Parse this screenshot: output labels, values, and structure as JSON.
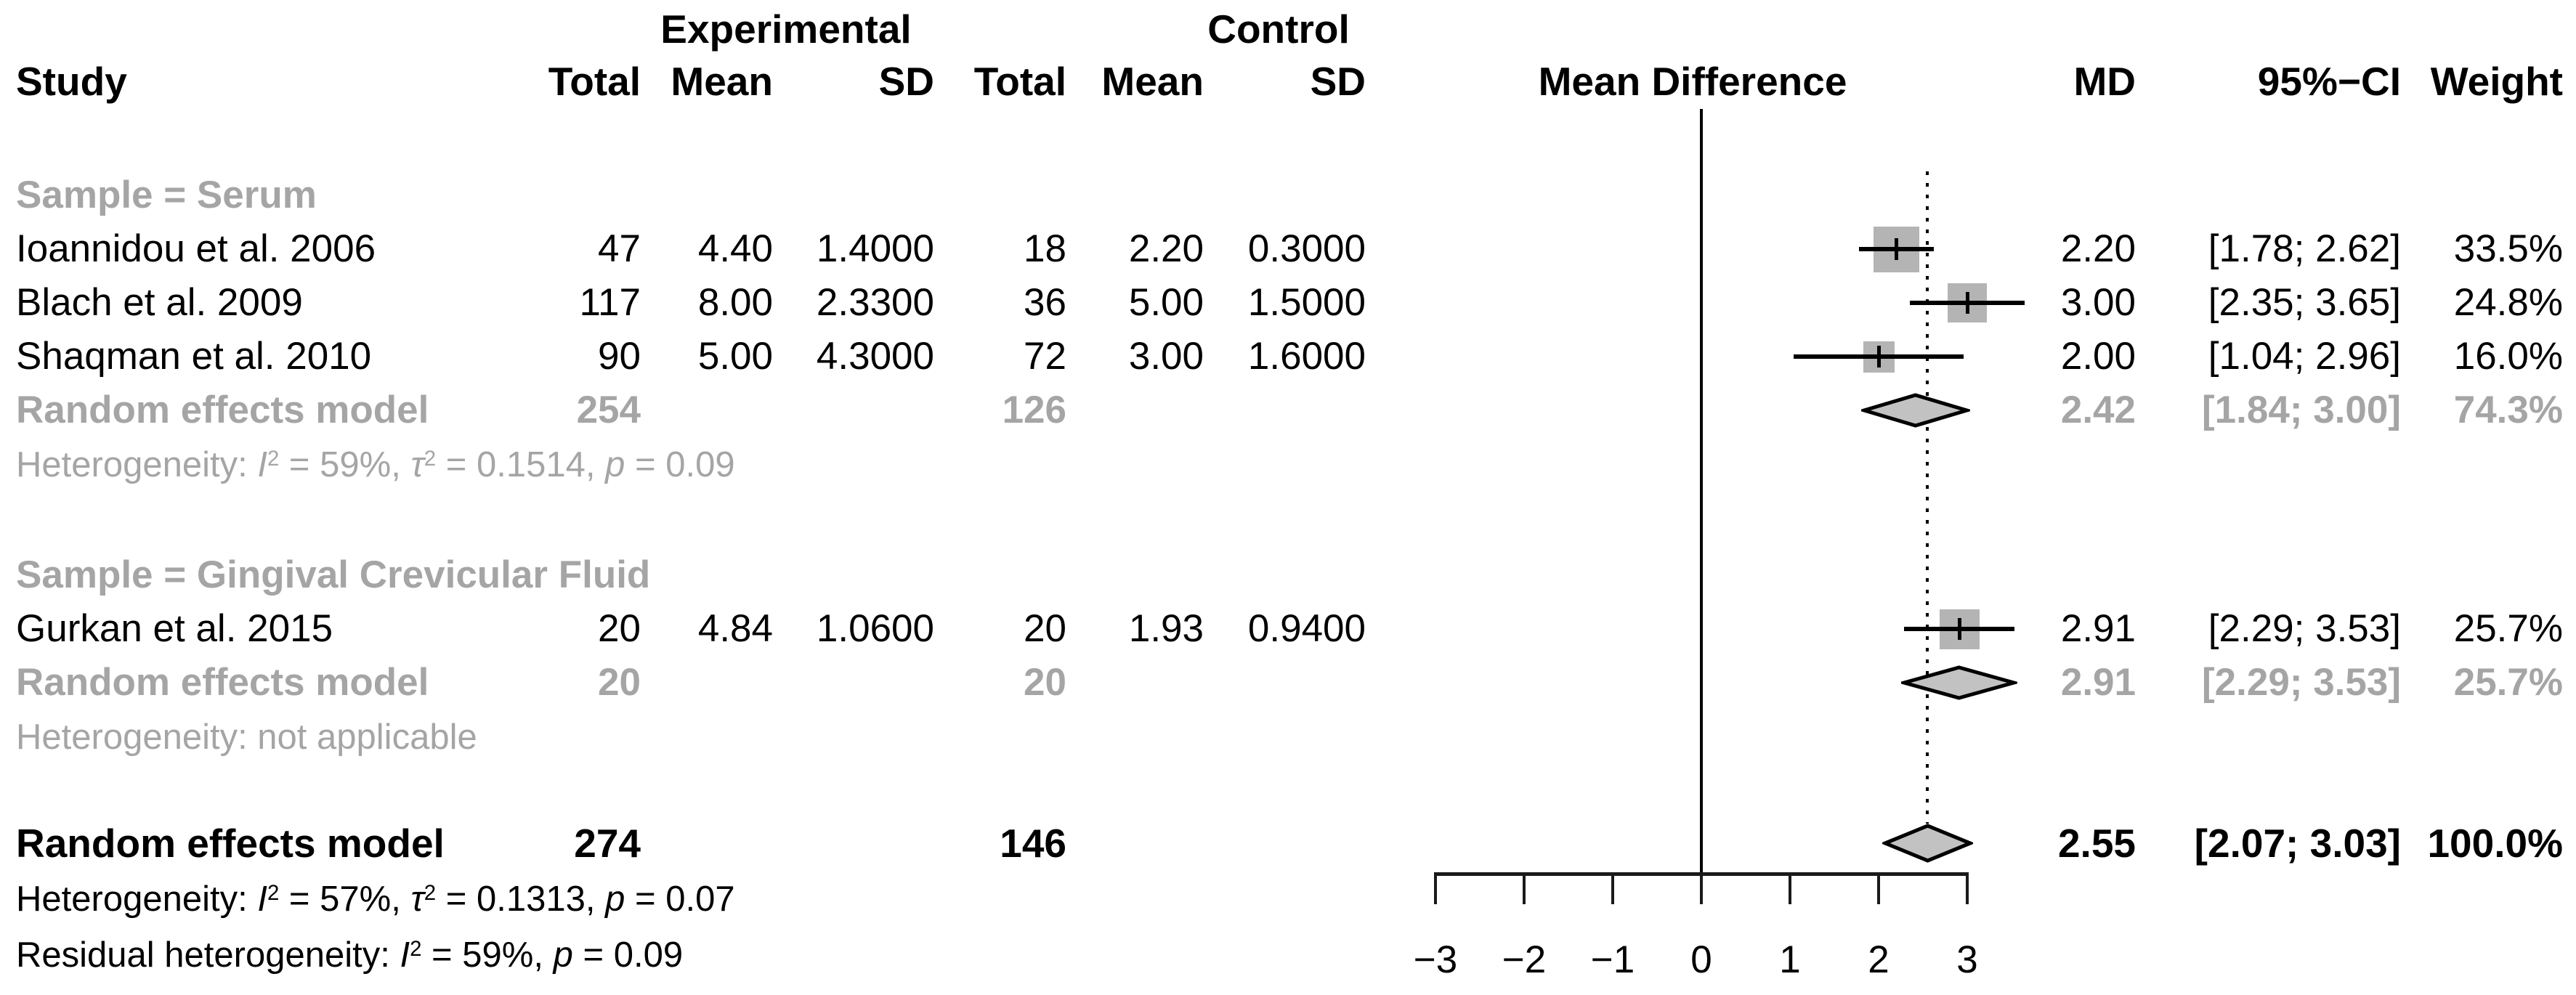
{
  "header": {
    "study": "Study",
    "experimental_group": "Experimental",
    "control_group": "Control",
    "total": "Total",
    "mean": "Mean",
    "sd": "SD",
    "plot_title": "Mean Difference",
    "md": "MD",
    "ci": "95%−CI",
    "weight": "Weight"
  },
  "colors": {
    "text_black": "#000000",
    "text_gray": "#a5a5a5",
    "square_fill": "#b4b4b4",
    "diamond_fill": "#c2c2c2",
    "line_black": "#000000"
  },
  "chart_data": {
    "type": "forest",
    "x_axis": {
      "ticks": [
        -3,
        -2,
        -1,
        0,
        1,
        2,
        3
      ],
      "tick_labels": [
        "−3",
        "−2",
        "−1",
        "0",
        "1",
        "2",
        "3"
      ],
      "xlim": [
        -3,
        3
      ],
      "zero_line": 0,
      "overall_dashed_line": 2.55
    },
    "groups": [
      {
        "label": "Sample = Serum",
        "studies": [
          {
            "study": "Ioannidou et al. 2006",
            "exp_total": "47",
            "exp_mean": "4.40",
            "exp_sd": "1.4000",
            "ctl_total": "18",
            "ctl_mean": "2.20",
            "ctl_sd": "0.3000",
            "md": 2.2,
            "ci_low": 1.78,
            "ci_high": 2.62,
            "weight": 33.5,
            "md_text": "2.20",
            "ci_text": "[1.78; 2.62]",
            "weight_text": "33.5%"
          },
          {
            "study": "Blach et al. 2009",
            "exp_total": "117",
            "exp_mean": "8.00",
            "exp_sd": "2.3300",
            "ctl_total": "36",
            "ctl_mean": "5.00",
            "ctl_sd": "1.5000",
            "md": 3.0,
            "ci_low": 2.35,
            "ci_high": 3.65,
            "weight": 24.8,
            "md_text": "3.00",
            "ci_text": "[2.35; 3.65]",
            "weight_text": "24.8%"
          },
          {
            "study": "Shaqman et al. 2010",
            "exp_total": "90",
            "exp_mean": "5.00",
            "exp_sd": "4.3000",
            "ctl_total": "72",
            "ctl_mean": "3.00",
            "ctl_sd": "1.6000",
            "md": 2.0,
            "ci_low": 1.04,
            "ci_high": 2.96,
            "weight": 16.0,
            "md_text": "2.00",
            "ci_text": "[1.04; 2.96]",
            "weight_text": "16.0%"
          }
        ],
        "summary": {
          "label": "Random effects model",
          "exp_total": "254",
          "ctl_total": "126",
          "md": 2.42,
          "ci_low": 1.84,
          "ci_high": 3.0,
          "md_text": "2.42",
          "ci_text": "[1.84; 3.00]",
          "weight_text": "74.3%"
        },
        "heterogeneity": "Heterogeneity: I² = 59%, τ² = 0.1514, p = 0.09"
      },
      {
        "label": "Sample = Gingival Crevicular Fluid",
        "studies": [
          {
            "study": "Gurkan et al. 2015",
            "exp_total": "20",
            "exp_mean": "4.84",
            "exp_sd": "1.0600",
            "ctl_total": "20",
            "ctl_mean": "1.93",
            "ctl_sd": "0.9400",
            "md": 2.91,
            "ci_low": 2.29,
            "ci_high": 3.53,
            "weight": 25.7,
            "md_text": "2.91",
            "ci_text": "[2.29; 3.53]",
            "weight_text": "25.7%"
          }
        ],
        "summary": {
          "label": "Random effects model",
          "exp_total": "20",
          "ctl_total": "20",
          "md": 2.91,
          "ci_low": 2.29,
          "ci_high": 3.53,
          "md_text": "2.91",
          "ci_text": "[2.29; 3.53]",
          "weight_text": "25.7%"
        },
        "heterogeneity": "Heterogeneity: not applicable"
      }
    ],
    "overall": {
      "label": "Random effects model",
      "exp_total": "274",
      "ctl_total": "146",
      "md": 2.55,
      "ci_low": 2.07,
      "ci_high": 3.03,
      "md_text": "2.55",
      "ci_text": "[2.07; 3.03]",
      "weight_text": "100.0%"
    },
    "footnotes": [
      "Heterogeneity: I² = 57%, τ² = 0.1313, p = 0.07",
      "Residual heterogeneity: I² = 59%, p = 0.09"
    ]
  }
}
